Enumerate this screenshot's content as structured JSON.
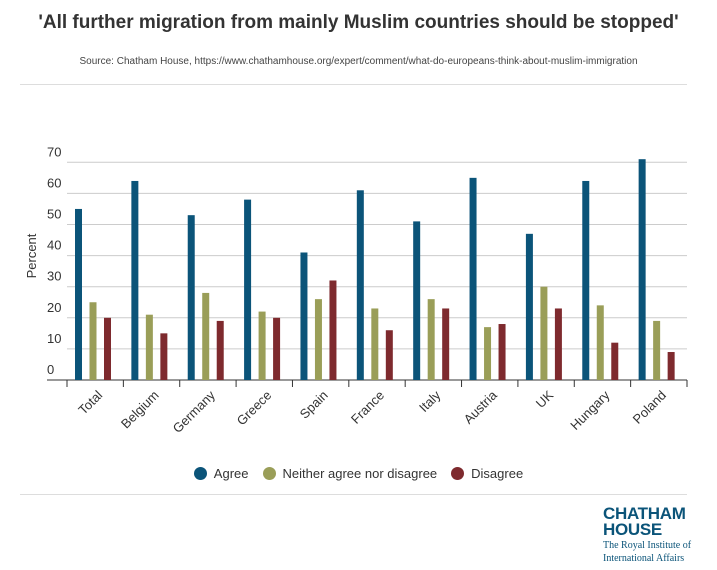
{
  "chart_data": {
    "type": "bar",
    "title": "'All further migration from mainly Muslim countries should be stopped'",
    "source": "Source: Chatham House, https://www.chathamhouse.org/expert/comment/what-do-europeans-think-about-muslim-immigration",
    "xlabel": "",
    "ylabel": "Percent",
    "ylim": [
      0,
      70
    ],
    "yticks": [
      0,
      10,
      20,
      30,
      40,
      50,
      60,
      70
    ],
    "categories": [
      "Total",
      "Belgium",
      "Germany",
      "Greece",
      "Spain",
      "France",
      "Italy",
      "Austria",
      "UK",
      "Hungary",
      "Poland"
    ],
    "series": [
      {
        "name": "Agree",
        "color": "#0b5479",
        "values": [
          55,
          64,
          53,
          58,
          41,
          61,
          51,
          65,
          47,
          64,
          71
        ]
      },
      {
        "name": "Neither agree nor disagree",
        "color": "#9a9e58",
        "values": [
          25,
          21,
          28,
          22,
          26,
          23,
          26,
          17,
          30,
          24,
          19
        ]
      },
      {
        "name": "Disagree",
        "color": "#7e2a2e",
        "values": [
          20,
          15,
          19,
          20,
          32,
          16,
          23,
          18,
          23,
          12,
          9
        ]
      }
    ],
    "legend": "bottom",
    "grid": true
  },
  "logo": {
    "line1": "CHATHAM",
    "line2": "HOUSE",
    "line3": "The Royal Institute of",
    "line4": "International Affairs"
  }
}
